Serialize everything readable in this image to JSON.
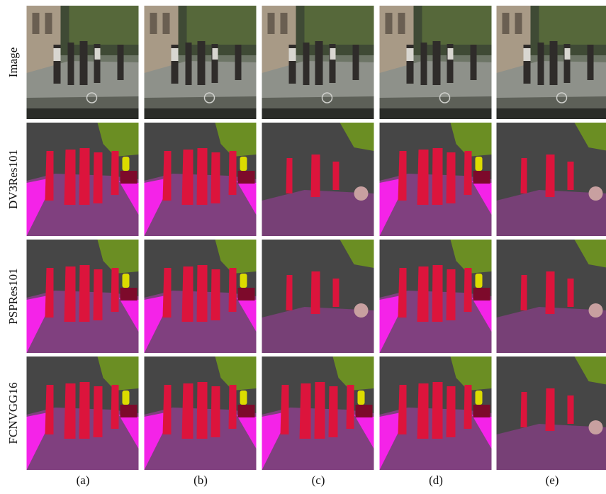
{
  "rows": [
    "Image",
    "DV3Res101",
    "PSPRes101",
    "FCNVGG16"
  ],
  "columns": [
    "(a)",
    "(b)",
    "(c)",
    "(d)",
    "(e)"
  ]
}
